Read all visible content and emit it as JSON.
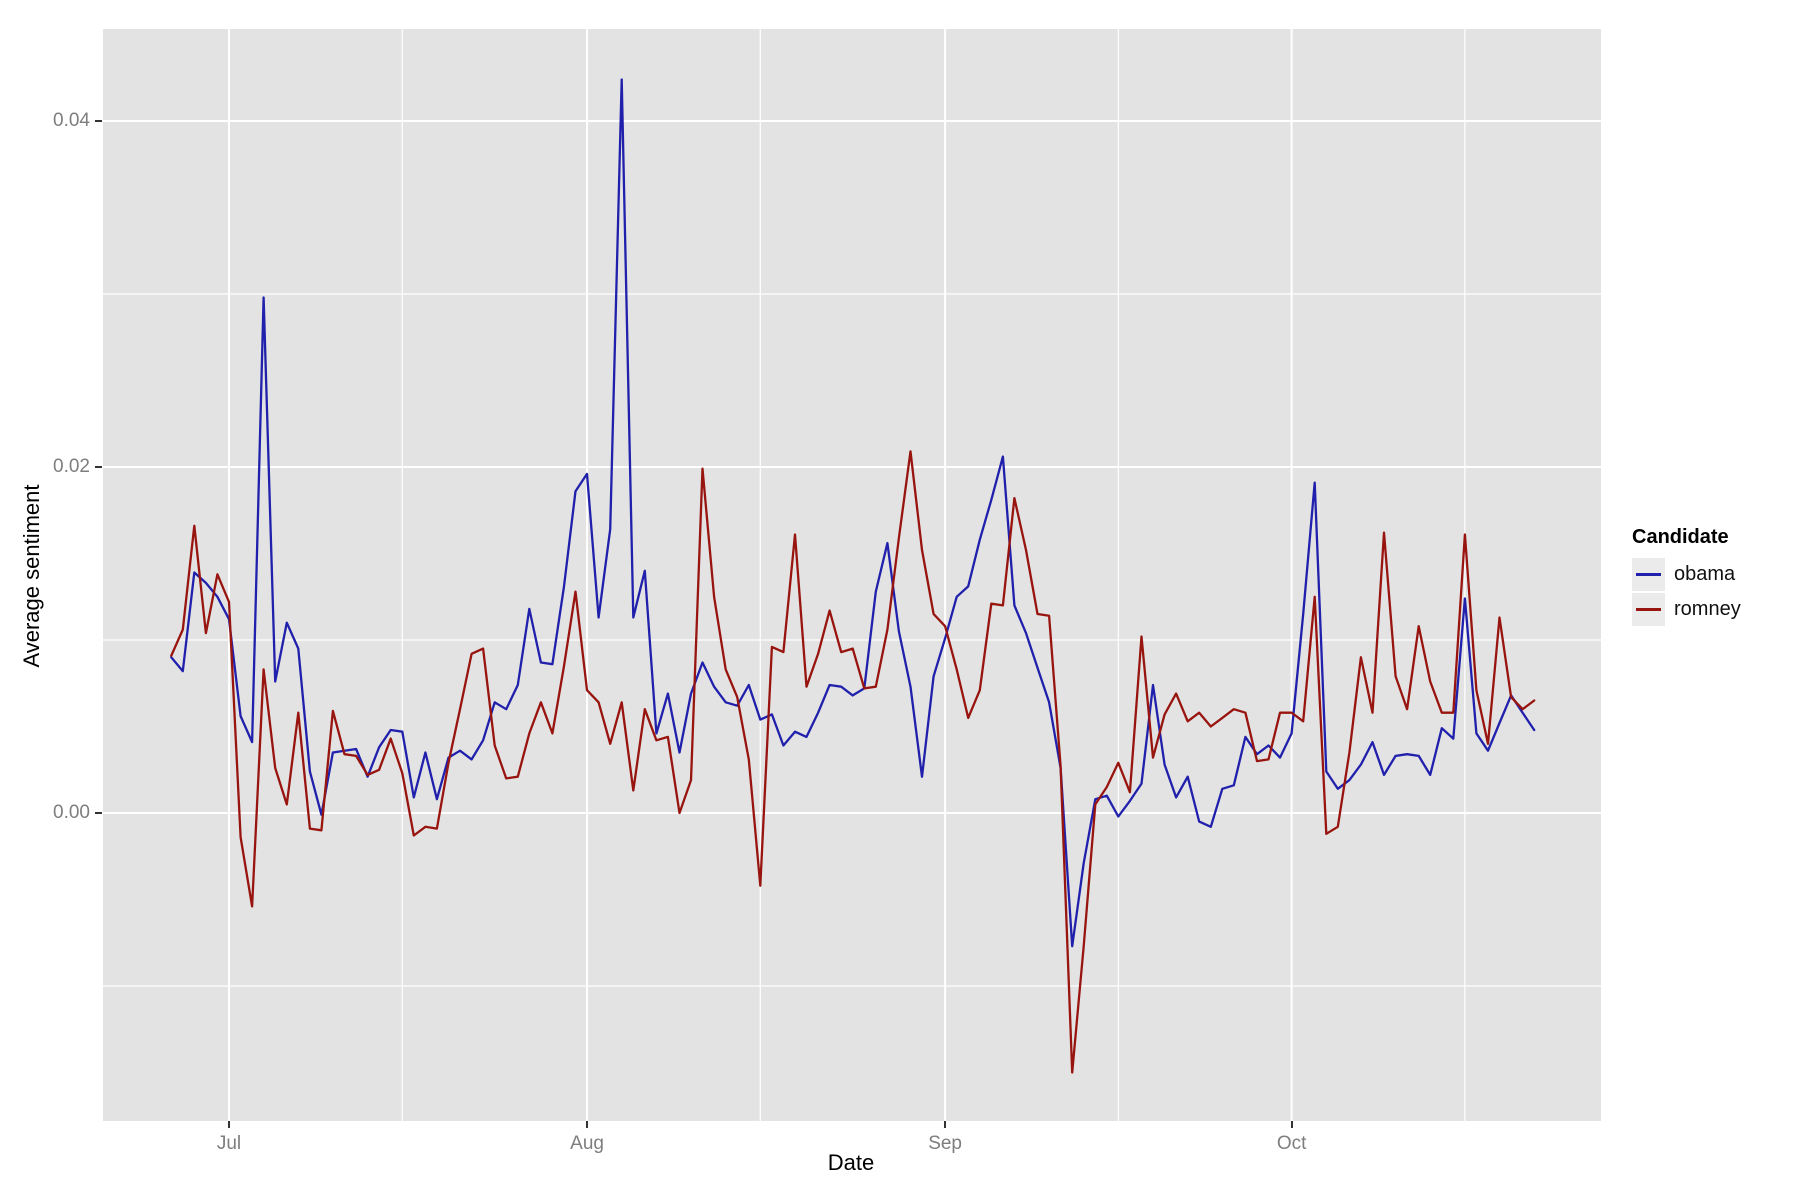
{
  "chart_data": {
    "type": "line",
    "title": "",
    "xlabel": "Date",
    "ylabel": "Average sentiment",
    "grid": true,
    "panel_background": "#e3e3e3",
    "gridline_color": "#ffffff",
    "tick_label_color": "#7e7e7e",
    "x_start_date": "Jun 26",
    "x_end_date": "Oct 22",
    "x_tick_labels": [
      "Jul",
      "Aug",
      "Sep",
      "Oct"
    ],
    "x_tick_day_offsets": [
      0,
      31,
      62,
      92
    ],
    "x_minor_day_offsets": [
      15,
      46,
      77,
      107
    ],
    "y_ticks": [
      {
        "v": 0.0,
        "label": "0.00"
      },
      {
        "v": 0.02,
        "label": "0.02"
      },
      {
        "v": 0.04,
        "label": "0.04"
      }
    ],
    "y_minor": [
      -0.01,
      0.01,
      0.03
    ],
    "ylim": [
      -0.018,
      0.0452
    ],
    "legend_position": "right",
    "legend": {
      "title": "Candidate",
      "entries": [
        {
          "label": "obama",
          "color": "#2020ac"
        },
        {
          "label": "romney",
          "color": "#98140f"
        }
      ]
    },
    "series": [
      {
        "name": "obama",
        "color": "#2020ac",
        "start_day_offset_from_jul1": -5,
        "values": [
          0.009,
          0.0082,
          0.0139,
          0.0133,
          0.0125,
          0.0112,
          0.0056,
          0.0041,
          0.0298,
          0.0076,
          0.011,
          0.0095,
          0.0024,
          -0.0001,
          0.0035,
          0.0036,
          0.0037,
          0.0021,
          0.0038,
          0.0048,
          0.0047,
          0.0009,
          0.0035,
          0.0008,
          0.0032,
          0.0036,
          0.0031,
          0.0042,
          0.0064,
          0.006,
          0.0074,
          0.0118,
          0.0087,
          0.0086,
          0.0131,
          0.0186,
          0.0196,
          0.0113,
          0.0164,
          0.0424,
          0.0113,
          0.014,
          0.0046,
          0.0069,
          0.0035,
          0.0069,
          0.0087,
          0.0073,
          0.0064,
          0.0062,
          0.0074,
          0.0054,
          0.0057,
          0.0039,
          0.0047,
          0.0044,
          0.0058,
          0.0074,
          0.0073,
          0.0068,
          0.0072,
          0.0128,
          0.0156,
          0.0105,
          0.0073,
          0.0021,
          0.0079,
          0.0101,
          0.0125,
          0.0131,
          0.0158,
          0.0181,
          0.0206,
          0.012,
          0.0104,
          0.0084,
          0.0064,
          0.0026,
          -0.0077,
          -0.0029,
          0.0008,
          0.001,
          -0.0002,
          0.0007,
          0.0017,
          0.0074,
          0.0028,
          0.0009,
          0.0021,
          -0.0005,
          -0.0008,
          0.0014,
          0.0016,
          0.0044,
          0.0034,
          0.0039,
          0.0032,
          0.0046,
          0.0115,
          0.0191,
          0.0024,
          0.0014,
          0.0019,
          0.0028,
          0.0041,
          0.0022,
          0.0033,
          0.0034,
          0.0033,
          0.0022,
          0.0049,
          0.0043,
          0.0124,
          0.0046,
          0.0036,
          0.0052,
          0.0068,
          0.0058,
          0.0048
        ]
      },
      {
        "name": "romney",
        "color": "#98140f",
        "start_day_offset_from_jul1": -5,
        "values": [
          0.0091,
          0.0106,
          0.0166,
          0.0104,
          0.0138,
          0.0122,
          -0.0014,
          -0.0054,
          0.0083,
          0.0026,
          0.0005,
          0.0058,
          -0.0009,
          -0.001,
          0.0059,
          0.0034,
          0.0033,
          0.0022,
          0.0025,
          0.0043,
          0.0023,
          -0.0013,
          -0.0008,
          -0.0009,
          0.0029,
          0.006,
          0.0092,
          0.0095,
          0.0039,
          0.002,
          0.0021,
          0.0046,
          0.0064,
          0.0046,
          0.0085,
          0.0128,
          0.0071,
          0.0064,
          0.004,
          0.0064,
          0.0013,
          0.006,
          0.0042,
          0.0044,
          0.0,
          0.0019,
          0.0199,
          0.0125,
          0.0083,
          0.0067,
          0.0031,
          -0.0042,
          0.0096,
          0.0093,
          0.0161,
          0.0073,
          0.0092,
          0.0117,
          0.0093,
          0.0095,
          0.0072,
          0.0073,
          0.0106,
          0.0159,
          0.0209,
          0.0152,
          0.0115,
          0.0108,
          0.0083,
          0.0055,
          0.0071,
          0.0121,
          0.012,
          0.0182,
          0.0152,
          0.0115,
          0.0114,
          0.0027,
          -0.015,
          -0.0077,
          0.0005,
          0.0015,
          0.0029,
          0.0012,
          0.0102,
          0.0032,
          0.0057,
          0.0069,
          0.0053,
          0.0058,
          0.005,
          0.0055,
          0.006,
          0.0058,
          0.003,
          0.0031,
          0.0058,
          0.0058,
          0.0053,
          0.0125,
          -0.0012,
          -0.0008,
          0.0035,
          0.009,
          0.0058,
          0.0162,
          0.0079,
          0.006,
          0.0108,
          0.0076,
          0.0058,
          0.0058,
          0.0161,
          0.0071,
          0.004,
          0.0113,
          0.0067,
          0.006,
          0.0065
        ]
      }
    ]
  }
}
